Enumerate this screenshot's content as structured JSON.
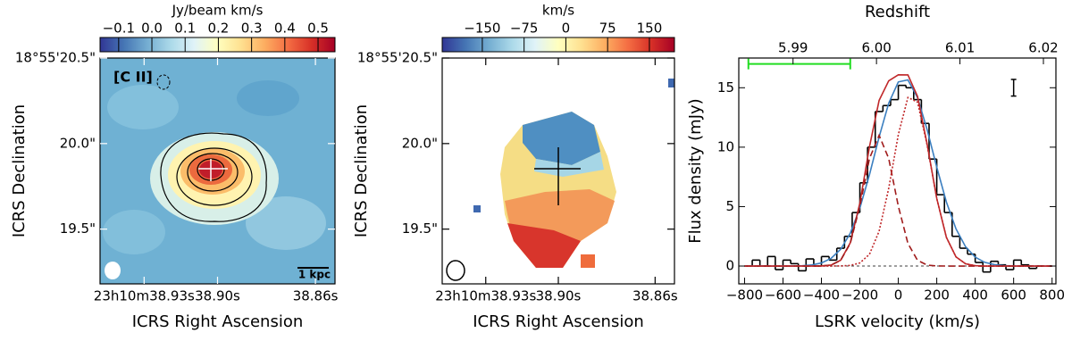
{
  "chart_data": [
    {
      "type": "image",
      "colorbar_label": "Jy/beam km/s",
      "clim": [
        -0.156,
        0.551
      ],
      "cticks": [
        {
          "value": -0.1,
          "label": "−0.1"
        },
        {
          "value": 0,
          "label": "0.0"
        },
        0.1,
        0.2,
        0.3,
        0.4,
        0.5
      ],
      "xlabel": "ICRS Right Ascension",
      "ylabel": "ICRS Declination",
      "xlim": [
        38.948,
        38.852
      ],
      "xticks": [
        {
          "value": 38.93,
          "label": "23h10m38.93s"
        },
        {
          "value": 38.9,
          "label": "38.90s"
        },
        {
          "value": 38.86,
          "label": "38.86s"
        }
      ],
      "ylim": [
        19.18,
        20.5
      ],
      "yticks": [
        {
          "value": 20.5,
          "label": "18°55'20.5\""
        },
        {
          "value": 20.0,
          "label": "20.0\""
        },
        {
          "value": 19.5,
          "label": "19.5\""
        }
      ],
      "annotations": [
        "[C II]",
        "1 kpc"
      ]
    },
    {
      "type": "image",
      "colorbar_label": "km/s",
      "clim": [
        -222,
        195
      ],
      "cticks": [
        {
          "value": -150,
          "label": "−150"
        },
        {
          "value": -75,
          "label": "−75"
        },
        0,
        75,
        150
      ],
      "xlabel": "ICRS Right Ascension",
      "ylabel": "ICRS Declination",
      "xlim": [
        38.948,
        38.852
      ],
      "xticks": [
        {
          "value": 38.93,
          "label": "23h10m38.93s"
        },
        {
          "value": 38.9,
          "label": "38.90s"
        },
        {
          "value": 38.86,
          "label": "38.86s"
        }
      ],
      "ylim": [
        19.18,
        20.5
      ],
      "yticks": [
        {
          "value": 20.5,
          "label": "18°55'20.5\""
        },
        {
          "value": 20.0,
          "label": "20.0\""
        },
        {
          "value": 19.5,
          "label": "19.5\""
        }
      ]
    },
    {
      "type": "spectrum",
      "xlabel": "LSRK velocity (km/s)",
      "ylabel": "Flux density (mJy)",
      "x2label": "Redshift",
      "xlim": [
        -830,
        820
      ],
      "xticks": [
        {
          "value": -800,
          "label": "−800"
        },
        {
          "value": -600,
          "label": "−600"
        },
        {
          "value": -400,
          "label": "−400"
        },
        {
          "value": -200,
          "label": "−200"
        },
        0,
        200,
        400,
        600,
        800
      ],
      "x2lim": [
        5.9835,
        6.0215
      ],
      "x2ticks": [
        5.99,
        {
          "value": 6.0,
          "label": "6.00"
        },
        6.01,
        6.02
      ],
      "ylim": [
        -1.5,
        17.5
      ],
      "yticks": [
        0,
        5,
        10,
        15
      ],
      "series": [
        {
          "style": "step",
          "color": "#000000",
          "x": [
            -780,
            -740,
            -700,
            -660,
            -620,
            -580,
            -540,
            -500,
            -460,
            -420,
            -380,
            -340,
            -300,
            -260,
            -220,
            -180,
            -140,
            -100,
            -60,
            -20,
            20,
            60,
            100,
            140,
            180,
            220,
            260,
            300,
            340,
            380,
            420,
            460,
            500,
            540,
            580,
            620,
            660,
            700,
            740
          ],
          "values": [
            0,
            0.5,
            0,
            0.8,
            -0.3,
            0.5,
            0.2,
            -0.4,
            0.6,
            0,
            0.8,
            0.5,
            1.5,
            2.5,
            4.5,
            7,
            10,
            13,
            13.5,
            14,
            15.2,
            15,
            14,
            12,
            9,
            6,
            4.5,
            2.5,
            1.5,
            1,
            0.3,
            -0.5,
            0.4,
            0.1,
            -0.3,
            0.5,
            0.1,
            -0.2,
            0
          ]
        },
        {
          "style": "solid",
          "color": "#3b7fc0",
          "x": [
            -800,
            -750,
            -700,
            -650,
            -600,
            -550,
            -500,
            -450,
            -400,
            -350,
            -300,
            -250,
            -200,
            -150,
            -100,
            -50,
            0,
            50,
            100,
            150,
            200,
            250,
            300,
            350,
            400,
            450,
            500,
            550,
            600,
            650,
            700,
            750,
            800
          ],
          "values": [
            0,
            0,
            0,
            0,
            0,
            0.01,
            0.03,
            0.09,
            0.26,
            0.64,
            1.41,
            2.76,
            4.87,
            7.69,
            10.85,
            13.7,
            15.49,
            15.66,
            14.17,
            11.47,
            8.32,
            5.39,
            3.13,
            1.62,
            0.75,
            0.31,
            0.12,
            0.04,
            0.01,
            0,
            0,
            0,
            0
          ]
        },
        {
          "style": "solid",
          "color": "#c0282a",
          "x": [
            -800,
            -750,
            -700,
            -650,
            -600,
            -550,
            -500,
            -450,
            -400,
            -350,
            -300,
            -250,
            -200,
            -150,
            -100,
            -50,
            0,
            50,
            100,
            150,
            200,
            250,
            300,
            350,
            400,
            450,
            500,
            550,
            600,
            650,
            700,
            750,
            800
          ],
          "values": [
            0,
            0,
            0,
            0,
            0,
            0,
            0,
            0,
            0.01,
            0.08,
            0.49,
            1.95,
            5.3,
            10.04,
            13.93,
            15.58,
            16.09,
            16.08,
            14.27,
            10.25,
            5.69,
            2.42,
            0.77,
            0.19,
            0.03,
            0,
            0,
            0,
            0,
            0,
            0,
            0,
            0
          ]
        },
        {
          "style": "dashed",
          "color": "#a01c1c",
          "x": [
            -800,
            -750,
            -700,
            -650,
            -600,
            -550,
            -500,
            -450,
            -400,
            -350,
            -300,
            -250,
            -200,
            -150,
            -100,
            -50,
            0,
            50,
            100,
            150,
            200,
            250,
            300,
            350,
            400,
            450,
            500,
            550,
            600,
            650,
            700,
            750,
            800
          ],
          "values": [
            0,
            0,
            0,
            0,
            0,
            0,
            0,
            0,
            0.01,
            0.08,
            0.48,
            1.9,
            5.04,
            9.05,
            11,
            9.05,
            5.04,
            1.9,
            0.48,
            0.08,
            0.01,
            0,
            0,
            0,
            0,
            0,
            0,
            0,
            0,
            0,
            0,
            0,
            0
          ]
        },
        {
          "style": "dotted",
          "color": "#c0282a",
          "x": [
            -800,
            -750,
            -700,
            -650,
            -600,
            -550,
            -500,
            -450,
            -400,
            -350,
            -300,
            -250,
            -200,
            -150,
            -100,
            -50,
            0,
            50,
            100,
            150,
            200,
            250,
            300,
            350,
            400,
            450,
            500,
            550,
            600,
            650,
            700,
            750,
            800
          ],
          "values": [
            0,
            0,
            0,
            0,
            0,
            0,
            0,
            0,
            0,
            0,
            0.01,
            0.05,
            0.26,
            0.99,
            2.93,
            6.53,
            11.05,
            14.18,
            13.79,
            10.17,
            5.68,
            2.42,
            0.77,
            0.19,
            0.03,
            0,
            0,
            0,
            0,
            0,
            0,
            0,
            0
          ]
        }
      ],
      "range_bar": {
        "x": [
          -780,
          -250
        ],
        "y": 17,
        "color": "#22dd22"
      },
      "error_bar": {
        "x": 600,
        "y": 15,
        "error": 0.7
      }
    }
  ]
}
